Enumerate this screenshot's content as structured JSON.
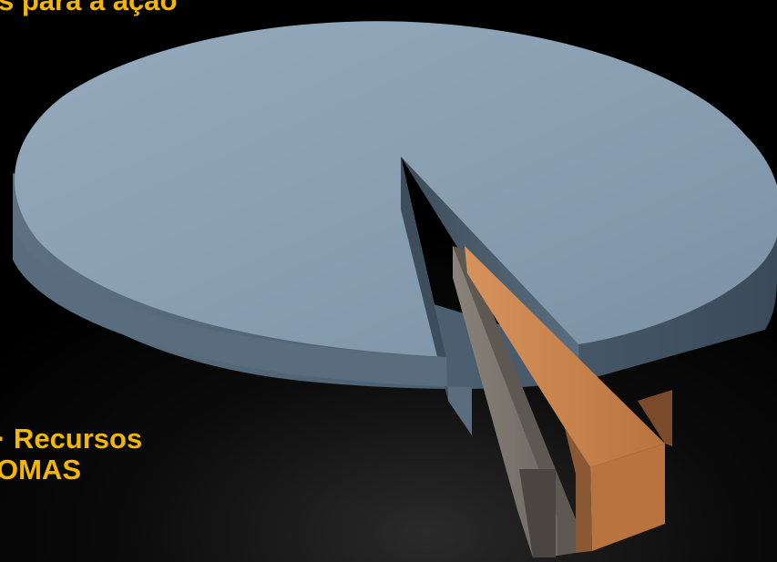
{
  "chart_data": {
    "type": "pie",
    "style": "3d-exploded",
    "slices": [
      {
        "label": "s para a ação",
        "color": "#8a9fb2"
      },
      {
        "label": "Recursos OMAS",
        "color": "#7a736c"
      },
      {
        "label": "",
        "color": "#c98450"
      }
    ],
    "values": [
      94,
      3,
      3
    ],
    "labels": {
      "top": "s para a ação",
      "bottom_line1": "·  Recursos",
      "bottom_line2": "OMAS"
    },
    "colors": {
      "main_top": "#8a9fb2",
      "main_side": "#4f6274",
      "gray_top": "#7a736c",
      "gray_side": "#534d48",
      "orange_top": "#c98450",
      "orange_side": "#8e5530",
      "label": "#f2b705"
    }
  }
}
